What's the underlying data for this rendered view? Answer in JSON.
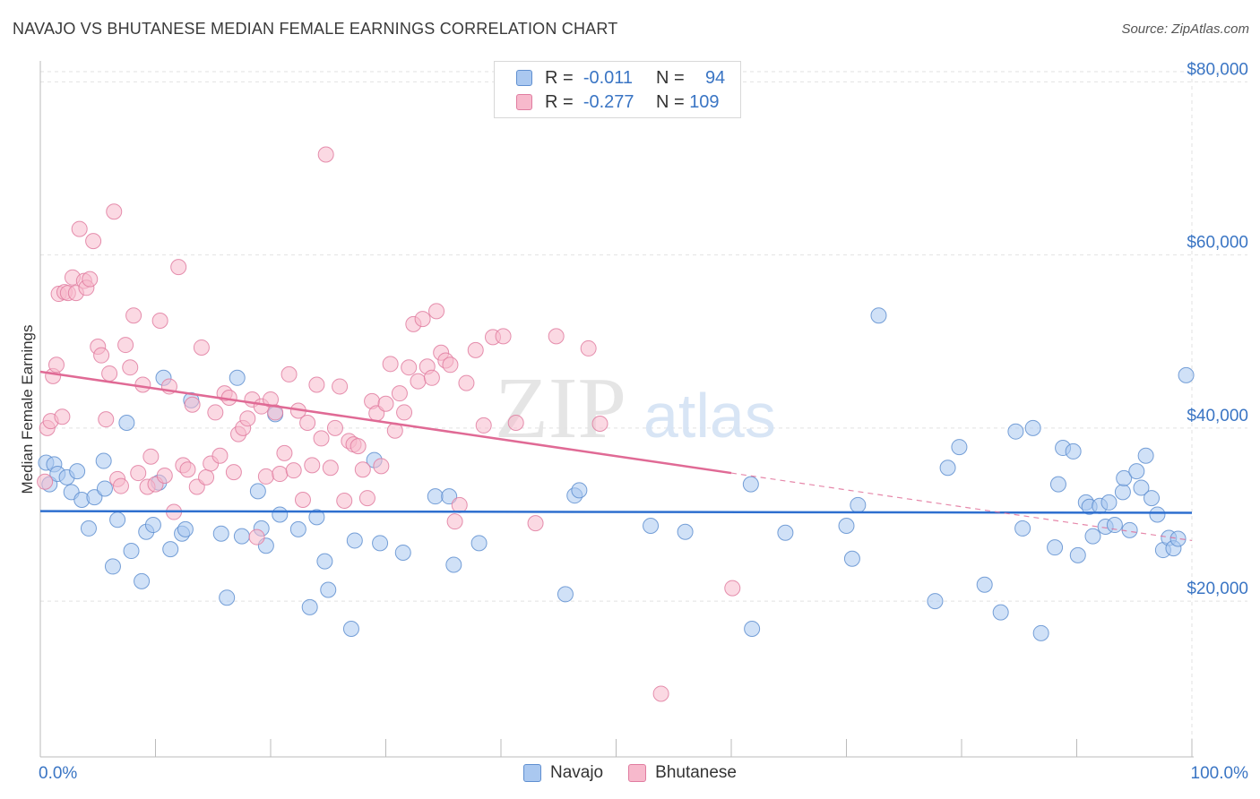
{
  "title": "NAVAJO VS BHUTANESE MEDIAN FEMALE EARNINGS CORRELATION CHART",
  "source": "Source: ZipAtlas.com",
  "watermark": {
    "zip": "ZIP",
    "atlas": "atlas"
  },
  "legend": {
    "rows": [
      {
        "r_label": "R =",
        "r_value": "-0.011",
        "n_label": "N =",
        "n_value": "94",
        "color": "#aac8f0",
        "border": "#5f8fd0"
      },
      {
        "r_label": "R =",
        "r_value": "-0.277",
        "n_label": "N =",
        "n_value": "109",
        "color": "#f7b9cc",
        "border": "#e07ca0"
      }
    ]
  },
  "bottom_legend": [
    {
      "label": "Navajo",
      "color": "#aac8f0",
      "border": "#5f8fd0"
    },
    {
      "label": "Bhutanese",
      "color": "#f7b9cc",
      "border": "#e07ca0"
    }
  ],
  "chart_data": {
    "type": "scatter",
    "title": "NAVAJO VS BHUTANESE MEDIAN FEMALE EARNINGS CORRELATION CHART",
    "xlabel": "",
    "ylabel": "Median Female Earnings",
    "xlim": [
      0,
      100
    ],
    "ylim": [
      2000,
      82000
    ],
    "x_tick_labels": [
      "0.0%",
      "100.0%"
    ],
    "y_ticks": [
      20000,
      40000,
      60000,
      80000
    ],
    "y_tick_labels": [
      "$20,000",
      "$40,000",
      "$60,000",
      "$80,000"
    ],
    "grid": true,
    "series": [
      {
        "name": "Navajo",
        "color": "#aac8f0",
        "stroke": "#5f8fd0",
        "trend": {
          "x": [
            0,
            100
          ],
          "y": [
            30400,
            30200
          ],
          "color": "#2e6fcf"
        },
        "points": [
          [
            0.5,
            36000
          ],
          [
            0.8,
            33500
          ],
          [
            1.2,
            35800
          ],
          [
            1.5,
            34700
          ],
          [
            2.3,
            34300
          ],
          [
            2.7,
            32600
          ],
          [
            3.2,
            35000
          ],
          [
            3.6,
            31700
          ],
          [
            4.2,
            28400
          ],
          [
            4.7,
            32000
          ],
          [
            5.5,
            36200
          ],
          [
            5.6,
            33000
          ],
          [
            6.3,
            24000
          ],
          [
            6.7,
            29400
          ],
          [
            7.5,
            40600
          ],
          [
            7.9,
            25800
          ],
          [
            8.8,
            22300
          ],
          [
            9.2,
            28000
          ],
          [
            9.8,
            28800
          ],
          [
            10.3,
            33700
          ],
          [
            10.7,
            45800
          ],
          [
            11.3,
            26000
          ],
          [
            12.3,
            27800
          ],
          [
            12.6,
            28300
          ],
          [
            13.1,
            43200
          ],
          [
            15.7,
            27800
          ],
          [
            16.2,
            20400
          ],
          [
            17.1,
            45800
          ],
          [
            17.5,
            27500
          ],
          [
            18.9,
            32700
          ],
          [
            19.2,
            28400
          ],
          [
            19.6,
            26400
          ],
          [
            20.4,
            41600
          ],
          [
            20.8,
            30000
          ],
          [
            22.4,
            28300
          ],
          [
            23.4,
            19300
          ],
          [
            24.0,
            29700
          ],
          [
            24.7,
            24600
          ],
          [
            25.0,
            21300
          ],
          [
            27.0,
            16800
          ],
          [
            27.3,
            27000
          ],
          [
            29.0,
            36300
          ],
          [
            29.5,
            26700
          ],
          [
            31.5,
            25600
          ],
          [
            34.3,
            32100
          ],
          [
            35.5,
            32100
          ],
          [
            35.9,
            24200
          ],
          [
            38.1,
            26700
          ],
          [
            45.6,
            20800
          ],
          [
            46.4,
            32200
          ],
          [
            46.8,
            32800
          ],
          [
            53.0,
            28700
          ],
          [
            56.0,
            28000
          ],
          [
            61.7,
            33500
          ],
          [
            61.8,
            16800
          ],
          [
            64.7,
            27900
          ],
          [
            70.0,
            28700
          ],
          [
            70.5,
            24900
          ],
          [
            71.0,
            31100
          ],
          [
            72.8,
            53000
          ],
          [
            77.7,
            20000
          ],
          [
            78.8,
            35400
          ],
          [
            79.8,
            37800
          ],
          [
            82.0,
            21900
          ],
          [
            83.4,
            18700
          ],
          [
            84.7,
            39600
          ],
          [
            85.3,
            28400
          ],
          [
            86.2,
            40000
          ],
          [
            86.9,
            16300
          ],
          [
            88.1,
            26200
          ],
          [
            88.4,
            33500
          ],
          [
            88.8,
            37700
          ],
          [
            89.7,
            37300
          ],
          [
            90.1,
            25300
          ],
          [
            90.8,
            31400
          ],
          [
            91.1,
            30900
          ],
          [
            91.4,
            27500
          ],
          [
            92.0,
            31000
          ],
          [
            92.5,
            28600
          ],
          [
            92.8,
            31400
          ],
          [
            93.3,
            28800
          ],
          [
            94.0,
            32600
          ],
          [
            94.1,
            34200
          ],
          [
            94.6,
            28200
          ],
          [
            95.2,
            35000
          ],
          [
            95.6,
            33100
          ],
          [
            96.0,
            36800
          ],
          [
            96.5,
            31900
          ],
          [
            97.0,
            30000
          ],
          [
            97.5,
            25900
          ],
          [
            98.0,
            27300
          ],
          [
            98.4,
            26100
          ],
          [
            98.8,
            27200
          ],
          [
            99.5,
            46100
          ]
        ]
      },
      {
        "name": "Bhutanese",
        "color": "#f7b9cc",
        "stroke": "#e07ca0",
        "trend": {
          "x": [
            0,
            60
          ],
          "y": [
            46500,
            34800
          ],
          "color": "#e06a95",
          "dashed_extension_to": [
            100,
            27000
          ]
        },
        "points": [
          [
            0.4,
            33800
          ],
          [
            0.6,
            40000
          ],
          [
            0.9,
            40800
          ],
          [
            1.1,
            46000
          ],
          [
            1.4,
            47300
          ],
          [
            1.6,
            55500
          ],
          [
            1.9,
            41300
          ],
          [
            2.1,
            55700
          ],
          [
            2.4,
            55600
          ],
          [
            2.8,
            57400
          ],
          [
            3.1,
            55600
          ],
          [
            3.4,
            63000
          ],
          [
            3.8,
            57000
          ],
          [
            4.0,
            56200
          ],
          [
            4.3,
            57200
          ],
          [
            4.6,
            61600
          ],
          [
            5.0,
            49400
          ],
          [
            5.3,
            48400
          ],
          [
            5.7,
            41000
          ],
          [
            6.0,
            46300
          ],
          [
            6.4,
            65000
          ],
          [
            6.7,
            34100
          ],
          [
            7.0,
            33300
          ],
          [
            7.4,
            49600
          ],
          [
            7.8,
            47000
          ],
          [
            8.1,
            53000
          ],
          [
            8.5,
            34800
          ],
          [
            8.9,
            45000
          ],
          [
            9.3,
            33200
          ],
          [
            9.6,
            36700
          ],
          [
            10.0,
            33500
          ],
          [
            10.4,
            52400
          ],
          [
            10.8,
            34500
          ],
          [
            11.2,
            44800
          ],
          [
            11.6,
            30300
          ],
          [
            12.0,
            58600
          ],
          [
            12.4,
            35700
          ],
          [
            12.8,
            35200
          ],
          [
            13.2,
            42700
          ],
          [
            13.6,
            33200
          ],
          [
            14.0,
            49300
          ],
          [
            14.4,
            34300
          ],
          [
            14.8,
            35900
          ],
          [
            15.2,
            41800
          ],
          [
            15.6,
            36800
          ],
          [
            16.0,
            44000
          ],
          [
            16.4,
            43500
          ],
          [
            16.8,
            34900
          ],
          [
            17.2,
            39300
          ],
          [
            17.6,
            40000
          ],
          [
            18.0,
            41100
          ],
          [
            18.4,
            43300
          ],
          [
            18.8,
            27400
          ],
          [
            19.2,
            42500
          ],
          [
            19.6,
            34400
          ],
          [
            20.0,
            43300
          ],
          [
            20.4,
            41800
          ],
          [
            20.8,
            34700
          ],
          [
            21.2,
            37100
          ],
          [
            21.6,
            46200
          ],
          [
            22.0,
            35100
          ],
          [
            22.4,
            42000
          ],
          [
            22.8,
            31700
          ],
          [
            23.2,
            40600
          ],
          [
            23.6,
            35700
          ],
          [
            24.0,
            45000
          ],
          [
            24.4,
            38800
          ],
          [
            24.8,
            71600
          ],
          [
            25.2,
            35400
          ],
          [
            25.6,
            40000
          ],
          [
            26.0,
            44800
          ],
          [
            26.4,
            31600
          ],
          [
            26.8,
            38500
          ],
          [
            27.2,
            38100
          ],
          [
            27.6,
            37900
          ],
          [
            28.0,
            35200
          ],
          [
            28.4,
            31900
          ],
          [
            28.8,
            43100
          ],
          [
            29.2,
            41700
          ],
          [
            29.6,
            35600
          ],
          [
            30.0,
            42800
          ],
          [
            30.4,
            47400
          ],
          [
            30.8,
            39700
          ],
          [
            31.2,
            44000
          ],
          [
            31.6,
            41800
          ],
          [
            32.0,
            47000
          ],
          [
            32.4,
            52000
          ],
          [
            32.8,
            45400
          ],
          [
            33.2,
            52600
          ],
          [
            33.6,
            47100
          ],
          [
            34.0,
            45800
          ],
          [
            34.4,
            53500
          ],
          [
            34.8,
            48700
          ],
          [
            35.2,
            47800
          ],
          [
            35.6,
            47300
          ],
          [
            36.0,
            29200
          ],
          [
            36.4,
            31100
          ],
          [
            37.0,
            45200
          ],
          [
            37.8,
            49000
          ],
          [
            38.5,
            40300
          ],
          [
            39.3,
            50500
          ],
          [
            40.2,
            50600
          ],
          [
            41.3,
            40600
          ],
          [
            43.0,
            29000
          ],
          [
            44.8,
            50600
          ],
          [
            47.6,
            49200
          ],
          [
            48.6,
            40500
          ],
          [
            53.9,
            9300
          ],
          [
            60.1,
            21500
          ]
        ]
      }
    ]
  }
}
